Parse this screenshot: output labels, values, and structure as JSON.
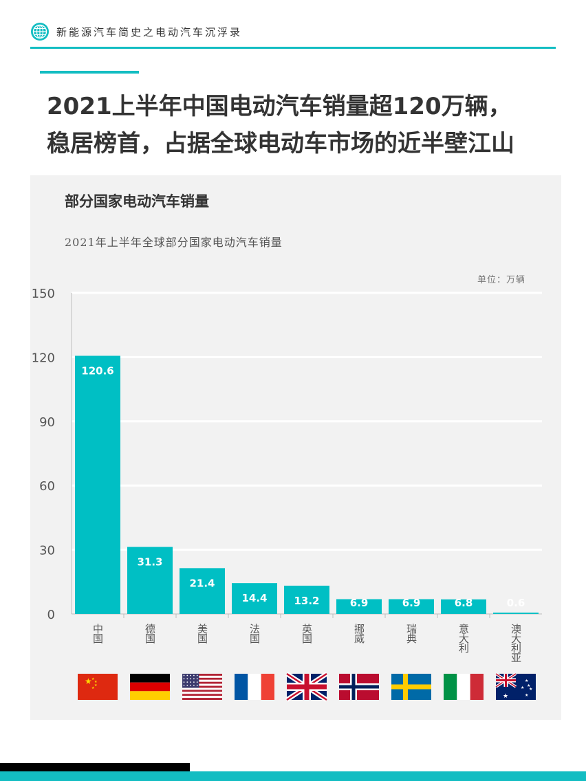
{
  "header": {
    "title": "新能源汽车简史之电动汽车沉浮录",
    "logo_icon": "globe-icon"
  },
  "headline": {
    "line1": "2021上半年中国电动汽车销量超120万辆，",
    "line2": "稳居榜首，占据全球电动车市场的近半壁江山"
  },
  "colors": {
    "accent": "#13bdc2",
    "bar": "#00bfc4",
    "panel": "#f2f2f2"
  },
  "chart_data": {
    "type": "bar",
    "title": "部分国家电动汽车销量",
    "subtitle": "2021年上半年全球部分国家电动汽车销量",
    "unit": "单位：万辆",
    "categories": [
      "中国",
      "德国",
      "美国",
      "法国",
      "英国",
      "挪威",
      "瑞典",
      "意大利",
      "澳大利亚"
    ],
    "values": [
      120.6,
      31.3,
      21.4,
      14.4,
      13.2,
      6.9,
      6.9,
      6.8,
      0.6
    ],
    "value_labels": [
      "120.6",
      "31.3",
      "21.4",
      "14.4",
      "13.2",
      "6.9",
      "6.9",
      "6.8",
      "0.6"
    ],
    "yticks": [
      "0",
      "30",
      "60",
      "90",
      "120",
      "150"
    ],
    "ylim": [
      0,
      150
    ],
    "grid": true,
    "legend": "none",
    "flags": [
      "china-flag",
      "germany-flag",
      "usa-flag",
      "france-flag",
      "uk-flag",
      "norway-flag",
      "sweden-flag",
      "italy-flag",
      "australia-flag"
    ]
  }
}
